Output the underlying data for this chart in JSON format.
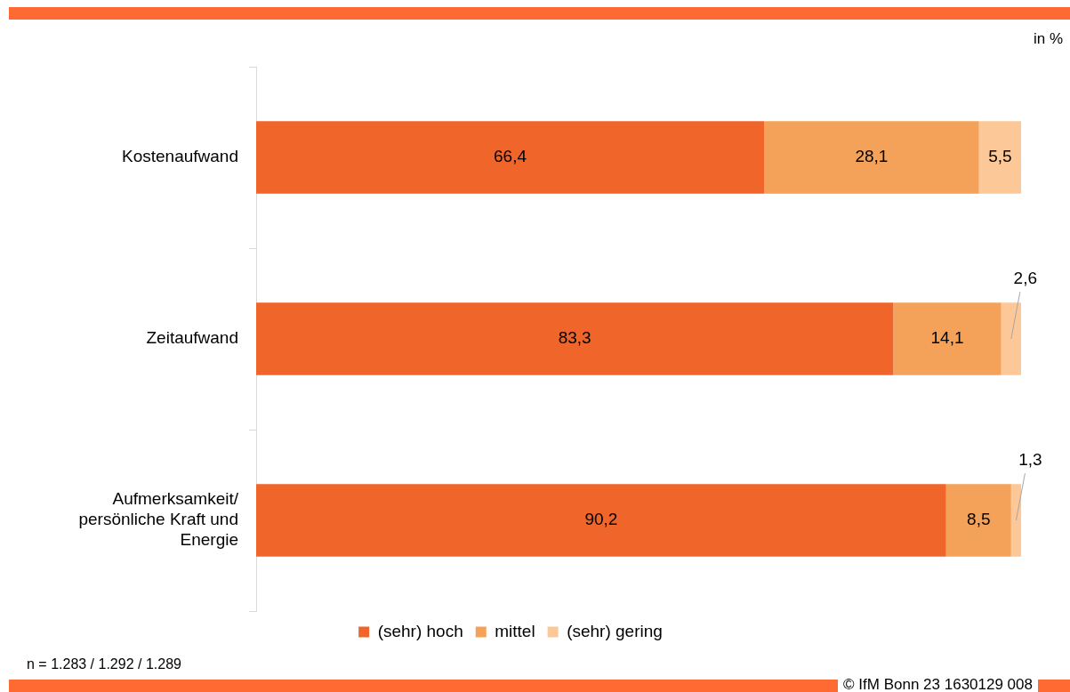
{
  "chart_data": {
    "type": "bar",
    "orientation": "horizontal",
    "stacked": true,
    "categories": [
      "Kostenaufwand",
      "Zeitaufwand",
      "Aufmerksamkeit/ persönliche Kraft und Energie"
    ],
    "series": [
      {
        "name": "(sehr) hoch",
        "color": "#f0652a",
        "values": [
          66.4,
          83.3,
          90.2
        ],
        "value_labels": [
          "66,4",
          "83,3",
          "90,2"
        ]
      },
      {
        "name": "mittel",
        "color": "#f4a259",
        "values": [
          28.1,
          14.1,
          8.5
        ],
        "value_labels": [
          "28,1",
          "14,1",
          "8,5"
        ]
      },
      {
        "name": "(sehr) gering",
        "color": "#fdc897",
        "values": [
          5.5,
          2.6,
          1.3
        ],
        "value_labels": [
          "5,5",
          "2,6",
          "1,3"
        ]
      }
    ],
    "legend": "bottom",
    "tick_labels": "y",
    "grid": false,
    "annotations": [
      "in %",
      "n = 1.283 / 1.292 / 1.289",
      "© IfM Bonn 23 1630129 008"
    ]
  }
}
